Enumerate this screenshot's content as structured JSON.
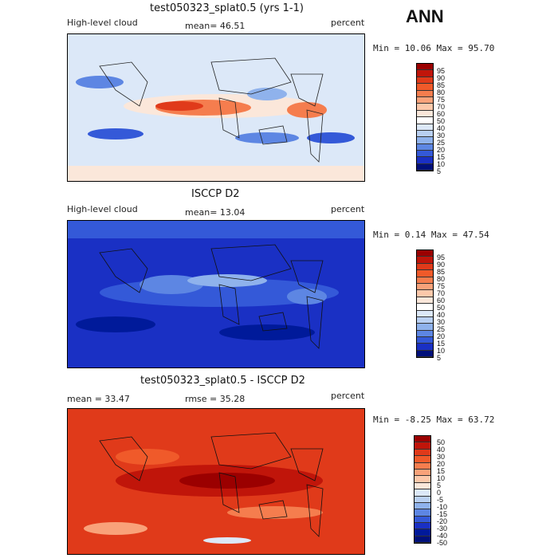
{
  "season": "ANN",
  "panels": [
    {
      "title": "test050323_splat0.5 (yrs 1-1)",
      "left_label": "High-level cloud",
      "center_label": "mean=  46.51",
      "right_label": "percent",
      "minmax": "Min =   10.06 Max =  95.70",
      "legend": [
        "95",
        "90",
        "85",
        "80",
        "75",
        "70",
        "60",
        "50",
        "40",
        "30",
        "25",
        "20",
        "15",
        "10",
        "5"
      ]
    },
    {
      "title": "ISCCP D2",
      "left_label": "High-level cloud",
      "center_label": "mean=  13.04",
      "right_label": "percent",
      "minmax": "Min =   0.14 Max =  47.54",
      "legend": [
        "95",
        "90",
        "85",
        "80",
        "75",
        "70",
        "60",
        "50",
        "40",
        "30",
        "25",
        "20",
        "15",
        "10",
        "5"
      ]
    },
    {
      "title": "test050323_splat0.5 - ISCCP D2",
      "left_label": "mean =  33.47",
      "center_label": "rmse =  35.28",
      "right_label": "percent",
      "minmax": "Min =  -8.25 Max =  63.72",
      "legend": [
        "50",
        "40",
        "30",
        "20",
        "15",
        "10",
        "5",
        "0",
        "-5",
        "-10",
        "-15",
        "-20",
        "-30",
        "-40",
        "-50"
      ]
    }
  ],
  "colors": {
    "scale": [
      "#9b0000",
      "#c0150a",
      "#e03a1a",
      "#f05a2a",
      "#f57d4e",
      "#f9a27a",
      "#fcc8aa",
      "#fbe7da",
      "#dce8f8",
      "#b9d0f2",
      "#8fb2ec",
      "#5d86e3",
      "#3459d8",
      "#1a30c4",
      "#001a9a",
      "#00107a"
    ]
  }
}
